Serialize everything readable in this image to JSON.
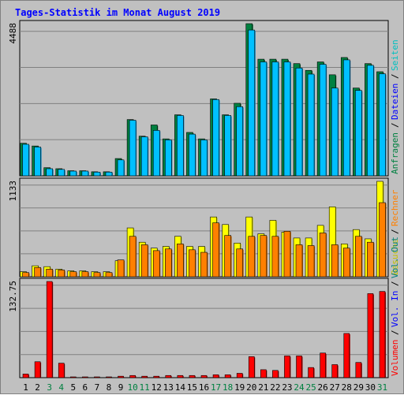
{
  "chart_data": {
    "type": "bar",
    "title": "Tages-Statistik im Monat August 2019",
    "categories": [
      "1",
      "2",
      "3",
      "4",
      "5",
      "6",
      "7",
      "8",
      "9",
      "10",
      "11",
      "12",
      "13",
      "14",
      "15",
      "16",
      "17",
      "18",
      "19",
      "20",
      "21",
      "22",
      "23",
      "24",
      "25",
      "26",
      "27",
      "28",
      "29",
      "30",
      "31"
    ],
    "weekend_days": [
      "3",
      "4",
      "10",
      "11",
      "17",
      "18",
      "24",
      "25",
      "31"
    ],
    "colors": {
      "anfragen": "#008040",
      "dateien": "#00c0ff",
      "seiten": "#00ffff",
      "besuche": "#ffff00",
      "rechner": "#ff8000",
      "volumen": "#ff0000",
      "vol_in": "#0000ff",
      "vol_out": "#008080",
      "weekday_label": "#000000",
      "weekend_label": "#008040"
    },
    "panels": [
      {
        "name": "hits",
        "ymax_label": "4488",
        "ylim": [
          0,
          4488
        ],
        "legend": [
          {
            "label": "Anfragen",
            "color": "#008040"
          },
          {
            "label": "/",
            "color": "#000000"
          },
          {
            "label": "Dateien",
            "color": "#0000ff"
          },
          {
            "label": "/",
            "color": "#000000"
          },
          {
            "label": "Seiten",
            "color": "#00c0c0"
          }
        ],
        "series": [
          {
            "name": "Anfragen",
            "values": [
              960,
              880,
              240,
              210,
              150,
              150,
              120,
              120,
              510,
              1660,
              1170,
              1500,
              1090,
              1800,
              1280,
              1090,
              2270,
              1800,
              2140,
              4488,
              3440,
              3440,
              3440,
              3310,
              3110,
              3360,
              2980,
              3490,
              2590,
              3310,
              3070
            ]
          },
          {
            "name": "Dateien",
            "values": [
              930,
              850,
              210,
              190,
              140,
              140,
              110,
              110,
              470,
              1640,
              1150,
              1340,
              1060,
              1780,
              1230,
              1060,
              2250,
              1780,
              2040,
              4300,
              3360,
              3360,
              3360,
              3180,
              3000,
              3290,
              2590,
              3420,
              2520,
              3260,
              3010
            ]
          }
        ]
      },
      {
        "name": "visits",
        "ymax_label": "1133",
        "ylim": [
          0,
          1133
        ],
        "legend": [
          {
            "label": "Besuche",
            "color": "#c0c000"
          },
          {
            "label": "/",
            "color": "#000000"
          },
          {
            "label": "Rechner",
            "color": "#ff8000"
          }
        ],
        "series": [
          {
            "name": "Besuche",
            "values": [
              60,
              130,
              120,
              90,
              70,
              70,
              60,
              60,
              190,
              580,
              410,
              340,
              360,
              480,
              360,
              360,
              710,
              620,
              400,
              710,
              510,
              670,
              530,
              460,
              460,
              610,
              830,
              390,
              560,
              450,
              1133
            ]
          },
          {
            "name": "Rechner",
            "values": [
              50,
              110,
              90,
              80,
              60,
              60,
              50,
              50,
              200,
              480,
              380,
              310,
              330,
              390,
              320,
              290,
              640,
              490,
              330,
              480,
              490,
              480,
              540,
              380,
              370,
              520,
              380,
              340,
              480,
              410,
              880
            ]
          }
        ]
      },
      {
        "name": "volume",
        "ymax_label": "132.75",
        "ylim": [
          0,
          132.75
        ],
        "legend": [
          {
            "label": "Volumen",
            "color": "#ff0000"
          },
          {
            "label": "/",
            "color": "#000000"
          },
          {
            "label": "Vol. In",
            "color": "#0000ff"
          },
          {
            "label": "/",
            "color": "#000000"
          },
          {
            "label": "Vol. Out",
            "color": "#008080"
          }
        ],
        "series": [
          {
            "name": "Volumen",
            "values": [
              5,
              22,
              132.75,
              20,
              1,
              1,
              1,
              1,
              2,
              3,
              2,
              2,
              3,
              3,
              3,
              3,
              4,
              4,
              6,
              29,
              11,
              10,
              30,
              30,
              14,
              34,
              18,
              61,
              21,
              116,
              119
            ]
          }
        ]
      }
    ]
  }
}
